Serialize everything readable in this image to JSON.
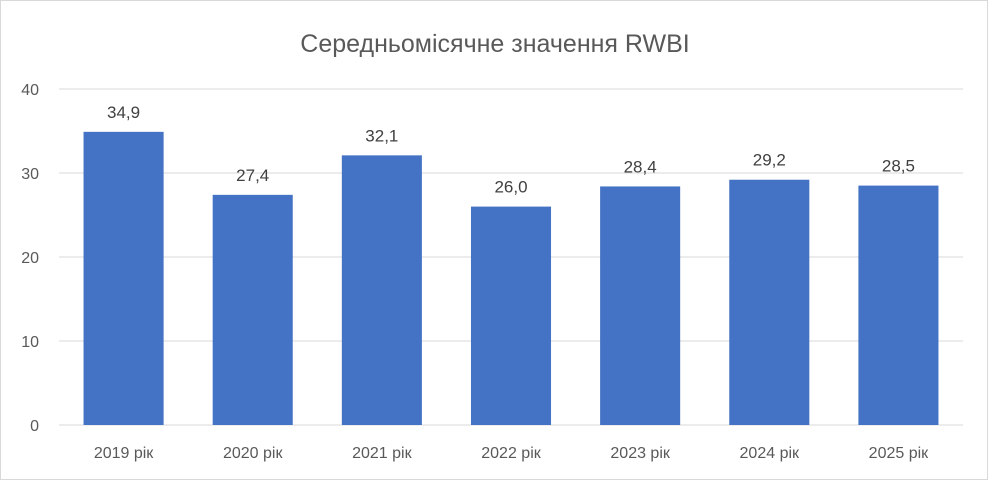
{
  "chart_data": {
    "type": "bar",
    "title": "Середньомісячне значення RWBI",
    "categories": [
      "2019 рік",
      "2020 рік",
      "2021 рік",
      "2022 рік",
      "2023 рік",
      "2024 рік",
      "2025 рік"
    ],
    "values": [
      34.9,
      27.4,
      32.1,
      26.0,
      28.4,
      29.2,
      28.5
    ],
    "data_labels": [
      "34,9",
      "27,4",
      "32,1",
      "26,0",
      "28,4",
      "29,2",
      "28,5"
    ],
    "yticks": [
      "0",
      "10",
      "20",
      "30",
      "40"
    ],
    "ylim": [
      0,
      40
    ],
    "grid": true,
    "legend": "none",
    "bar_color": "#4472c4"
  }
}
